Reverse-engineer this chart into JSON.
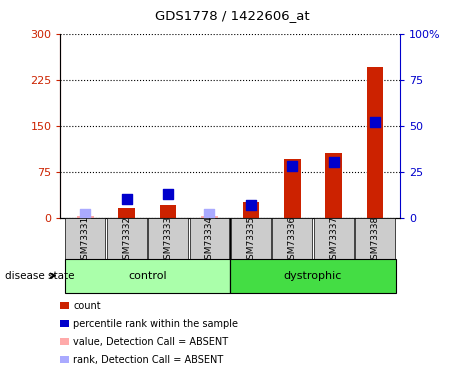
{
  "title": "GDS1778 / 1422606_at",
  "samples": [
    "GSM73331",
    "GSM73332",
    "GSM73333",
    "GSM73334",
    "GSM73335",
    "GSM73336",
    "GSM73337",
    "GSM73338"
  ],
  "counts": [
    2,
    15,
    20,
    3,
    25,
    95,
    105,
    245
  ],
  "ranks": [
    2,
    10,
    13,
    2,
    7,
    28,
    30,
    52
  ],
  "absent": [
    true,
    false,
    false,
    true,
    false,
    false,
    false,
    false
  ],
  "left_axis_color": "#CC2200",
  "right_axis_color": "#0000CC",
  "left_ylim": [
    0,
    300
  ],
  "right_ylim": [
    0,
    100
  ],
  "left_yticks": [
    0,
    75,
    150,
    225,
    300
  ],
  "right_yticks": [
    0,
    25,
    50,
    75,
    100
  ],
  "right_yticklabels": [
    "0",
    "25",
    "50",
    "75",
    "100%"
  ],
  "bar_color_present": "#CC2200",
  "bar_color_absent": "#FFAAAA",
  "dot_color_present": "#0000CC",
  "dot_color_absent": "#AAAAFF",
  "bar_width": 0.4,
  "dot_size": 55,
  "groups_info": [
    {
      "label": "control",
      "start": 0,
      "end": 3,
      "color": "#AAFFAA"
    },
    {
      "label": "dystrophic",
      "start": 4,
      "end": 7,
      "color": "#44DD44"
    }
  ],
  "legend_items": [
    {
      "label": "count",
      "color": "#CC2200"
    },
    {
      "label": "percentile rank within the sample",
      "color": "#0000CC"
    },
    {
      "label": "value, Detection Call = ABSENT",
      "color": "#FFAAAA"
    },
    {
      "label": "rank, Detection Call = ABSENT",
      "color": "#AAAAFF"
    }
  ]
}
